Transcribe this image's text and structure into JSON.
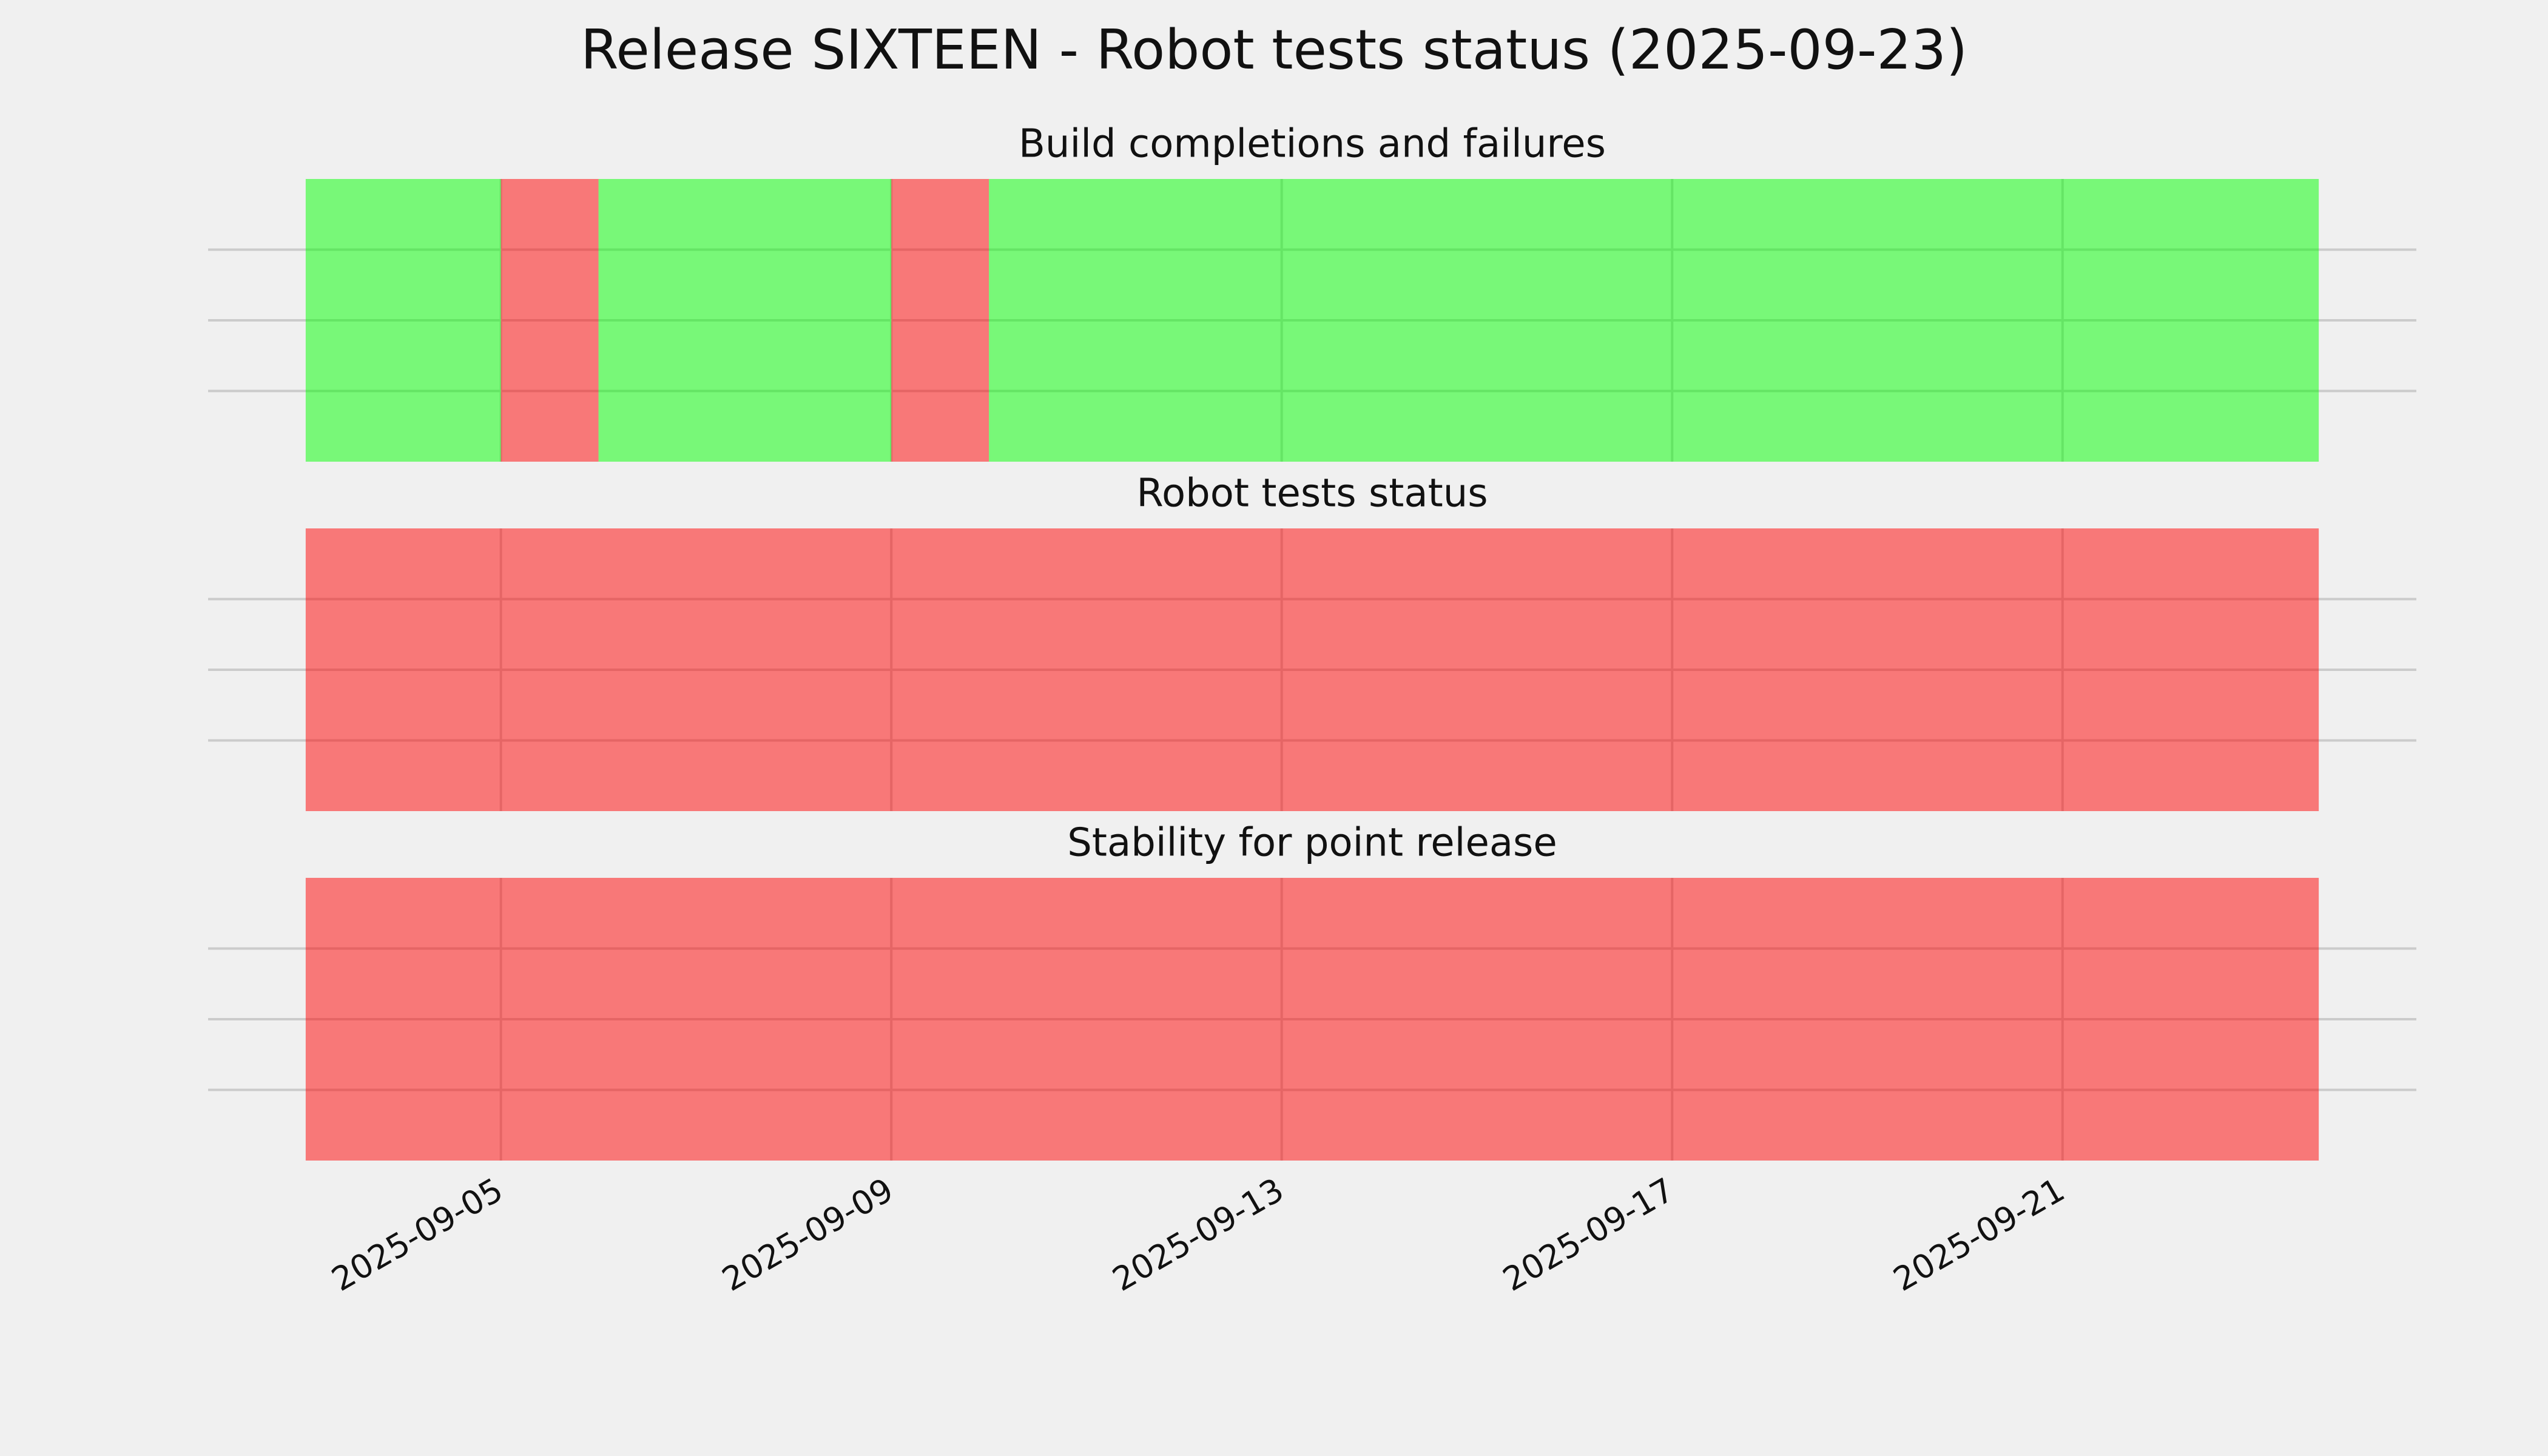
{
  "chart_data": {
    "type": "timeline",
    "title": "Release SIXTEEN - Robot tests status (2025-09-23)",
    "xlim": [
      "2025-09-02",
      "2025-09-24T15:00"
    ],
    "xticks": [
      "2025-09-05",
      "2025-09-09",
      "2025-09-13",
      "2025-09-17",
      "2025-09-21"
    ],
    "grid": true,
    "alpha": 0.5,
    "panels": [
      {
        "title": "Build completions and failures",
        "spans": [
          {
            "start": "2025-09-03",
            "end": "2025-09-05",
            "color": "#00ff00"
          },
          {
            "start": "2025-09-05",
            "end": "2025-09-06",
            "color": "#ff0000"
          },
          {
            "start": "2025-09-06",
            "end": "2025-09-09",
            "color": "#00ff00"
          },
          {
            "start": "2025-09-09",
            "end": "2025-09-10",
            "color": "#ff0000"
          },
          {
            "start": "2025-09-10",
            "end": "2025-09-23T15:00",
            "color": "#00ff00"
          }
        ]
      },
      {
        "title": "Robot tests status",
        "spans": [
          {
            "start": "2025-09-03",
            "end": "2025-09-23T15:00",
            "color": "#ff0000"
          }
        ]
      },
      {
        "title": "Stability for point release",
        "spans": [
          {
            "start": "2025-09-03",
            "end": "2025-09-23T15:00",
            "color": "#ff0000"
          }
        ]
      }
    ]
  }
}
